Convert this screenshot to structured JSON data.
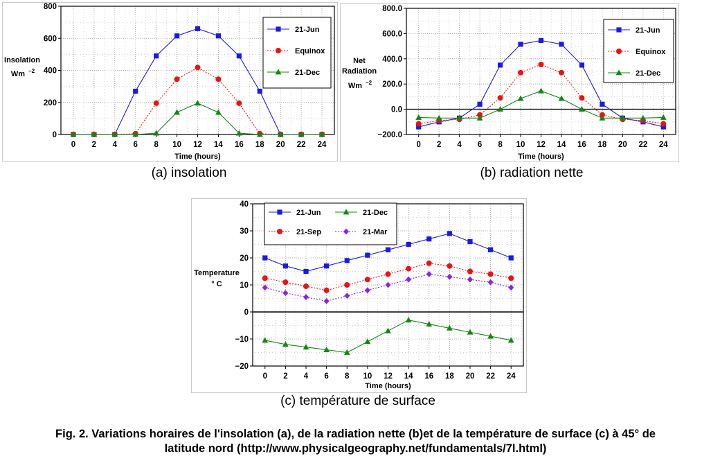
{
  "chart_data": [
    {
      "type": "line",
      "ylabel": "Insolation",
      "yunit": "Wm",
      "yunit_exp": "−2",
      "xlabel": "Time (hours)",
      "ylim": [
        0,
        800
      ],
      "yticks": [
        0,
        200,
        400,
        600,
        800
      ],
      "ytick_labels": [
        "0",
        "200",
        "400",
        "600",
        "800"
      ],
      "xlim": [
        -1.2,
        25.2
      ],
      "xticks": [
        0,
        2,
        4,
        6,
        8,
        10,
        12,
        14,
        16,
        18,
        20,
        22,
        24
      ],
      "grid": true,
      "legend_position": "top-right",
      "x": [
        0,
        2,
        4,
        6,
        8,
        10,
        12,
        14,
        16,
        18,
        20,
        22,
        24
      ],
      "series": [
        {
          "name": "21-Jun",
          "color": "#1a1ae6",
          "marker": "square",
          "dash": "solid",
          "values": [
            0,
            0,
            0,
            270,
            490,
            615,
            660,
            615,
            490,
            270,
            0,
            0,
            0
          ]
        },
        {
          "name": "Equinox",
          "color": "#ee1111",
          "marker": "circle",
          "dash": "dotted",
          "values": [
            0,
            0,
            0,
            5,
            195,
            345,
            418,
            345,
            195,
            5,
            0,
            0,
            0
          ]
        },
        {
          "name": "21-Dec",
          "color": "#118811",
          "marker": "triangle",
          "dash": "solid",
          "values": [
            0,
            0,
            0,
            0,
            8,
            138,
            195,
            138,
            8,
            0,
            0,
            0,
            0
          ]
        }
      ]
    },
    {
      "type": "line",
      "ylabel_lines": [
        "Net",
        "Radiation"
      ],
      "yunit": "Wm",
      "yunit_exp": "−2",
      "xlabel": "Time (hours)",
      "ylim": [
        -200,
        800
      ],
      "yticks": [
        -200,
        0,
        200,
        400,
        600,
        800
      ],
      "ytick_labels": [
        "−200.0",
        "0.0",
        "200.0",
        "400.0",
        "600.0",
        "800.0"
      ],
      "xlim": [
        -1.2,
        25.2
      ],
      "xticks": [
        0,
        2,
        4,
        6,
        8,
        10,
        12,
        14,
        16,
        18,
        20,
        22,
        24
      ],
      "grid": true,
      "legend_position": "top-right",
      "x": [
        0,
        2,
        4,
        6,
        8,
        10,
        12,
        14,
        16,
        18,
        20,
        22,
        24
      ],
      "series": [
        {
          "name": "21-Jun",
          "color": "#1a1ae6",
          "marker": "square",
          "dash": "solid",
          "values": [
            -140,
            -100,
            -70,
            40,
            350,
            515,
            545,
            515,
            350,
            40,
            -70,
            -100,
            -140
          ]
        },
        {
          "name": "Equinox",
          "color": "#ee1111",
          "marker": "circle",
          "dash": "dotted",
          "values": [
            -115,
            -90,
            -80,
            -45,
            90,
            290,
            355,
            290,
            90,
            -45,
            -80,
            -90,
            -115
          ]
        },
        {
          "name": "21-Dec",
          "color": "#118811",
          "marker": "triangle",
          "dash": "solid",
          "values": [
            -65,
            -70,
            -70,
            -70,
            0,
            85,
            145,
            85,
            0,
            -70,
            -70,
            -70,
            -65
          ]
        }
      ]
    },
    {
      "type": "line",
      "ylabel_lines": [
        "Temperature",
        "° C"
      ],
      "xlabel": "Time (hours)",
      "ylim": [
        -20,
        40
      ],
      "yticks": [
        -20,
        -10,
        0,
        10,
        20,
        30,
        40
      ],
      "ytick_labels": [
        "−20",
        "−10",
        "0",
        "10",
        "20",
        "30",
        "40"
      ],
      "xlim": [
        -1.2,
        25.2
      ],
      "xticks": [
        0,
        2,
        4,
        6,
        8,
        10,
        12,
        14,
        16,
        18,
        20,
        22,
        24
      ],
      "grid": true,
      "legend_position": "top",
      "x": [
        0,
        2,
        4,
        6,
        8,
        10,
        12,
        14,
        16,
        18,
        20,
        22,
        24
      ],
      "series": [
        {
          "name": "21-Jun",
          "color": "#1a1ae6",
          "marker": "square",
          "dash": "solid",
          "values": [
            20,
            17,
            15,
            17,
            19,
            21,
            23,
            25,
            27,
            29,
            26,
            23,
            20
          ]
        },
        {
          "name": "21-Dec",
          "color": "#118811",
          "marker": "triangle",
          "dash": "solid",
          "values": [
            -10.5,
            -12,
            -13,
            -14,
            -15,
            -11,
            -7,
            -3,
            -4.5,
            -6,
            -7.5,
            -9,
            -10.5
          ]
        },
        {
          "name": "21-Sep",
          "color": "#ee1111",
          "marker": "circle",
          "dash": "dotted",
          "values": [
            12.5,
            11,
            9.5,
            8,
            10,
            12,
            14,
            16,
            18,
            17,
            15,
            14,
            12.5
          ]
        },
        {
          "name": "21-Mar",
          "color": "#8822ee",
          "marker": "diamond",
          "dash": "dotted",
          "values": [
            9,
            7,
            5.5,
            4,
            6,
            8,
            10,
            12,
            14,
            13,
            12,
            11,
            9
          ]
        }
      ]
    }
  ],
  "subcaptions": {
    "a": "(a) insolation",
    "b": "(b) radiation nette",
    "c": "(c) température de surface"
  },
  "caption": {
    "line1": "Fig. 2. Variations horaires de l'insolation (a), de la radiation nette (b)et de la température de surface (c) à 45° de",
    "line2": "latitude nord (http://www.physicalgeography.net/fundamentals/7l.html)"
  }
}
